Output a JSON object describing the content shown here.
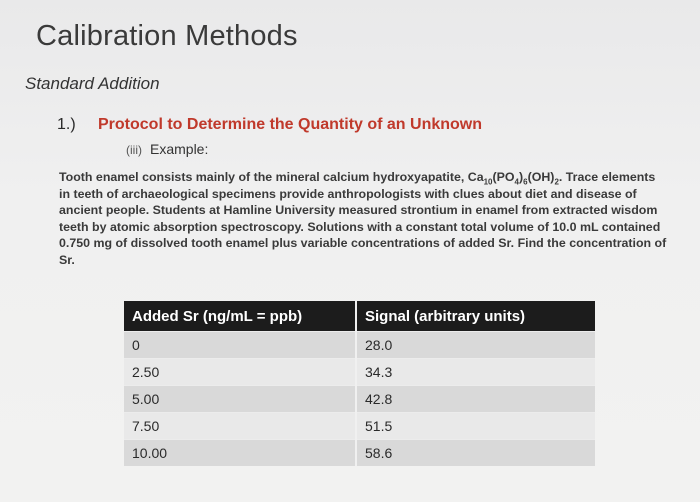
{
  "slide": {
    "title": "Calibration Methods",
    "subtitle": "Standard Addition",
    "item": {
      "number": "1.)",
      "heading": "Protocol to Determine the Quantity of an Unknown",
      "sub_number": "(iii)",
      "sub_label": "Example:"
    },
    "paragraph": {
      "part1": "Tooth enamel consists mainly of the mineral calcium hydroxyapatite, Ca",
      "sub1": "10",
      "part2": "(PO",
      "sub2": "4",
      "part3": ")",
      "sub3": "6",
      "part4": "(OH)",
      "sub4": "2",
      "part5": ". Trace elements in teeth of archaeological specimens provide anthropologists with clues about diet and disease of ancient people. Students at Hamline University measured strontium in enamel from extracted wisdom teeth by atomic absorption spectroscopy. Solutions with a constant total volume of 10.0 mL contained 0.750 mg of dissolved tooth enamel plus variable concentrations of added Sr. Find the concentration of Sr."
    },
    "table": {
      "headers": [
        "Added Sr (ng/mL = ppb)",
        "Signal (arbitrary units)"
      ],
      "rows": [
        [
          "0",
          "28.0"
        ],
        [
          "2.50",
          "34.3"
        ],
        [
          "5.00",
          "42.8"
        ],
        [
          "7.50",
          "51.5"
        ],
        [
          "10.00",
          "58.6"
        ]
      ]
    }
  }
}
